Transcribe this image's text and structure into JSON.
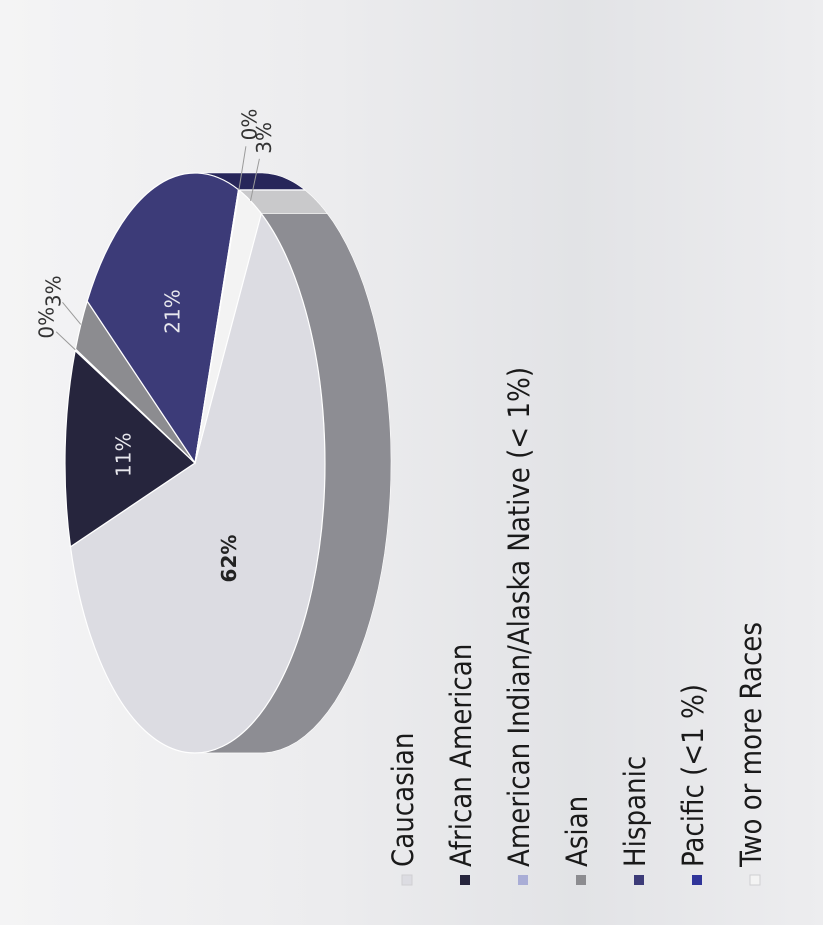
{
  "chart_data": {
    "type": "pie",
    "three_d": true,
    "legend_position": "below",
    "categories": [
      "Caucasian",
      "African American",
      "American Indian/Alaska Native (< 1%)",
      "Asian",
      "Hispanic",
      "Pacific (<1 %)",
      "Two or more Races"
    ],
    "values": [
      62,
      11,
      0,
      3,
      21,
      0,
      3
    ],
    "data_labels": [
      "62%",
      "11%",
      "0%",
      "3%",
      "21%",
      "0%",
      "3%"
    ],
    "colors": [
      "#dcdce2",
      "#26253d",
      "#a9add6",
      "#8c8c90",
      "#3c3b78",
      "#30359a",
      "#f3f3f3"
    ],
    "side_colors": [
      "#8d8d93",
      "#18182a",
      "#8b8faa",
      "#5f5f62",
      "#27265a",
      "#232770",
      "#c9c9cb"
    ]
  }
}
